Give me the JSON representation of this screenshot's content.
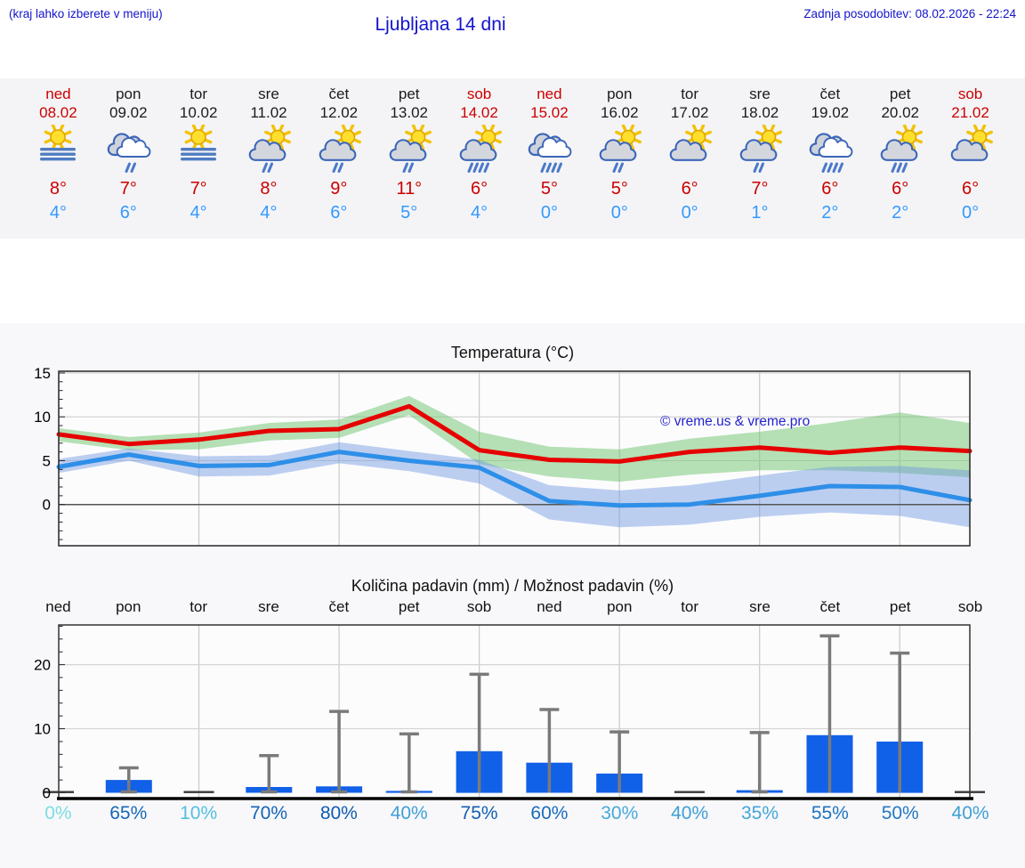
{
  "header": {
    "hint": "(kraj lahko izberete v meniju)",
    "title": "Ljubljana 14 dni",
    "updated": "Zadnja posodobitev: 08.02.2026 - 22:24"
  },
  "watermark": "© vreme.us & vreme.pro",
  "colors": {
    "link_blue": "#1414cc",
    "weekend_red": "#cc0000",
    "weekday_black": "#1a1a1a",
    "high_text": "#cc0000",
    "low_text": "#3399ff",
    "strip_bg": "#f4f4f6",
    "section_bg": "#f8f8fa"
  },
  "days": [
    {
      "name": "ned",
      "date": "08.02",
      "weekend": true,
      "icon": "fog-sun",
      "rain": 0,
      "high": "8°",
      "low": "4°",
      "pop": "0%",
      "pop_color": "#7bdde2"
    },
    {
      "name": "pon",
      "date": "09.02",
      "weekend": false,
      "icon": "clouds-rain",
      "rain": 2,
      "high": "7°",
      "low": "6°",
      "pop": "65%",
      "pop_color": "#1667b8"
    },
    {
      "name": "tor",
      "date": "10.02",
      "weekend": false,
      "icon": "fog-sun",
      "rain": 0,
      "high": "7°",
      "low": "4°",
      "pop": "10%",
      "pop_color": "#55bee0"
    },
    {
      "name": "sre",
      "date": "11.02",
      "weekend": false,
      "icon": "sun-cloud",
      "rain": 2,
      "high": "8°",
      "low": "4°",
      "pop": "70%",
      "pop_color": "#1463b6"
    },
    {
      "name": "čet",
      "date": "12.02",
      "weekend": false,
      "icon": "sun-cloud",
      "rain": 2,
      "high": "9°",
      "low": "6°",
      "pop": "80%",
      "pop_color": "#0f5bb0"
    },
    {
      "name": "pet",
      "date": "13.02",
      "weekend": false,
      "icon": "sun-cloud",
      "rain": 2,
      "high": "11°",
      "low": "5°",
      "pop": "40%",
      "pop_color": "#3f9fd5"
    },
    {
      "name": "sob",
      "date": "14.02",
      "weekend": true,
      "icon": "sun-cloud",
      "rain": 4,
      "high": "6°",
      "low": "4°",
      "pop": "75%",
      "pop_color": "#1260b4"
    },
    {
      "name": "ned",
      "date": "15.02",
      "weekend": true,
      "icon": "clouds-rain",
      "rain": 4,
      "high": "5°",
      "low": "0°",
      "pop": "60%",
      "pop_color": "#1a6cbc"
    },
    {
      "name": "pon",
      "date": "16.02",
      "weekend": false,
      "icon": "sun-cloud",
      "rain": 2,
      "high": "5°",
      "low": "0°",
      "pop": "30%",
      "pop_color": "#47a9db"
    },
    {
      "name": "tor",
      "date": "17.02",
      "weekend": false,
      "icon": "sun-cloud",
      "rain": 0,
      "high": "6°",
      "low": "0°",
      "pop": "40%",
      "pop_color": "#3f9fd5"
    },
    {
      "name": "sre",
      "date": "18.02",
      "weekend": false,
      "icon": "sun-cloud",
      "rain": 2,
      "high": "7°",
      "low": "1°",
      "pop": "35%",
      "pop_color": "#44a6d9"
    },
    {
      "name": "čet",
      "date": "19.02",
      "weekend": false,
      "icon": "clouds-rain",
      "rain": 4,
      "high": "6°",
      "low": "2°",
      "pop": "55%",
      "pop_color": "#1f73c0"
    },
    {
      "name": "pet",
      "date": "20.02",
      "weekend": false,
      "icon": "sun-cloud",
      "rain": 3,
      "high": "6°",
      "low": "2°",
      "pop": "50%",
      "pop_color": "#2379c4"
    },
    {
      "name": "sob",
      "date": "21.02",
      "weekend": true,
      "icon": "sun-cloud",
      "rain": 0,
      "high": "6°",
      "low": "0°",
      "pop": "40%",
      "pop_color": "#3f9fd5"
    }
  ],
  "chart_data": [
    {
      "type": "line",
      "title": "Temperatura (°C)",
      "x_labels": [
        "ned",
        "pon",
        "tor",
        "sre",
        "čet",
        "pet",
        "sob",
        "ned",
        "pon",
        "tor",
        "sre",
        "čet",
        "pet",
        "sob"
      ],
      "ylim": [
        -4.7,
        15.2
      ],
      "yticks": [
        0,
        5,
        10,
        15
      ],
      "grid": true,
      "series": [
        {
          "name": "max temperature",
          "color": "#e60000",
          "values": [
            8,
            6.9,
            7.4,
            8.4,
            8.6,
            11.2,
            6.2,
            5.1,
            4.9,
            6,
            6.5,
            5.9,
            6.5,
            6.1
          ]
        },
        {
          "name": "min temperature",
          "color": "#2e8fe8",
          "values": [
            4.3,
            5.7,
            4.4,
            4.5,
            6,
            5,
            4.2,
            0.4,
            -0.1,
            0,
            1,
            2.1,
            2,
            0.5
          ]
        }
      ],
      "bands": [
        {
          "name": "max range",
          "color": "rgba(110,196,110,0.5)",
          "upper": [
            8.7,
            7.7,
            8.2,
            9.3,
            9.7,
            12.4,
            8.3,
            6.6,
            6.3,
            7.5,
            8.3,
            9.3,
            10.5,
            9.3
          ],
          "lower": [
            7.2,
            6.2,
            6.3,
            7.3,
            7.6,
            10.2,
            4.6,
            3.2,
            2.6,
            3.4,
            3.9,
            3.9,
            3.6,
            3.1
          ]
        },
        {
          "name": "min range",
          "color": "rgba(110,150,225,0.45)",
          "upper": [
            5.2,
            6.4,
            5.5,
            5.6,
            7.1,
            6.1,
            5.1,
            2.2,
            1.6,
            2.2,
            3.3,
            4.3,
            4.4,
            3.9
          ],
          "lower": [
            3.6,
            5,
            3.2,
            3.3,
            4.7,
            3.8,
            2.4,
            -1.7,
            -2.6,
            -2.3,
            -1.4,
            -0.9,
            -1.3,
            -2.6
          ]
        }
      ]
    },
    {
      "type": "bar",
      "title": "Količina padavin (mm) / Možnost padavin (%)",
      "x_labels": [
        "ned",
        "pon",
        "tor",
        "sre",
        "čet",
        "pet",
        "sob",
        "ned",
        "pon",
        "tor",
        "sre",
        "čet",
        "pet",
        "sob"
      ],
      "ylim": [
        -0.9,
        26.2
      ],
      "yticks": [
        0,
        10,
        20
      ],
      "grid": true,
      "bar_color": "#1160e8",
      "whisker_color": "#7a7a7a",
      "values": [
        0.05,
        2,
        0.05,
        0.9,
        1,
        0.3,
        6.5,
        4.7,
        3,
        0.05,
        0.4,
        9,
        8,
        0.05
      ],
      "whisker_max": [
        0,
        3.9,
        0,
        5.8,
        12.7,
        9.2,
        18.5,
        13,
        9.5,
        0,
        9.4,
        24.5,
        21.8,
        0
      ],
      "percent_labels": [
        "0%",
        "65%",
        "10%",
        "70%",
        "80%",
        "40%",
        "75%",
        "60%",
        "30%",
        "40%",
        "35%",
        "55%",
        "50%",
        "40%"
      ]
    }
  ]
}
